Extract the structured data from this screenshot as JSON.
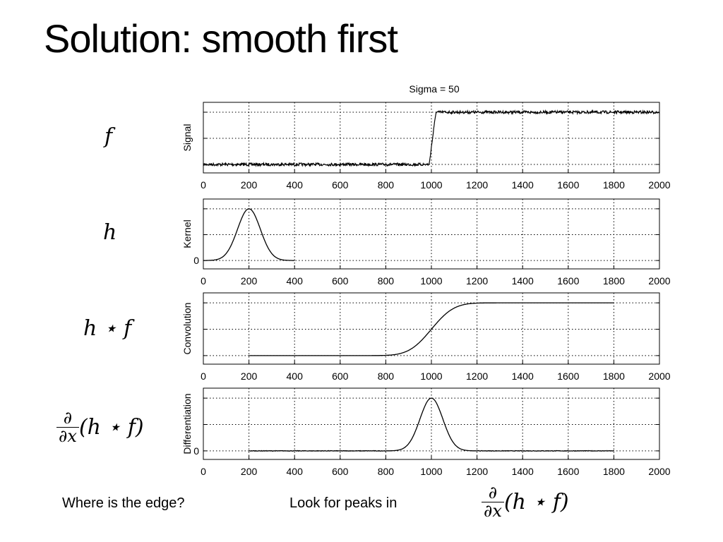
{
  "slide": {
    "title": "Solution:  smooth first",
    "note_left": "Where is the edge?",
    "note_right": "Look for peaks in",
    "math_labels": [
      "f",
      "h",
      "h ⋆ f"
    ],
    "deriv_numerator": "∂",
    "deriv_denominator": "∂x",
    "deriv_body": "(h ⋆ f)"
  },
  "chart_data": [
    {
      "type": "line",
      "title": "Sigma = 50",
      "ylabel": "Signal",
      "xlim": [
        0,
        2000
      ],
      "xticks": [
        0,
        200,
        400,
        600,
        800,
        1000,
        1200,
        1400,
        1600,
        1800,
        2000
      ],
      "grid": "dotted",
      "yticks": [],
      "series": [
        {
          "x": [
            0,
            990,
            1020,
            2000
          ],
          "y": [
            0,
            0,
            1,
            1
          ],
          "noise": true
        }
      ]
    },
    {
      "type": "line",
      "title": "",
      "ylabel": "Kernel",
      "xlim": [
        0,
        2000
      ],
      "xticks": [
        0,
        200,
        400,
        600,
        800,
        1000,
        1200,
        1400,
        1600,
        1800,
        2000
      ],
      "grid": "dotted",
      "yticks": [
        "0"
      ],
      "series": [
        {
          "gaussian": {
            "center": 200,
            "sigma": 50,
            "from": 0,
            "to": 400
          }
        }
      ]
    },
    {
      "type": "line",
      "title": "",
      "ylabel": "Convolution",
      "xlim": [
        0,
        2000
      ],
      "xticks": [
        0,
        200,
        400,
        600,
        800,
        1000,
        1200,
        1400,
        1600,
        1800,
        2000
      ],
      "grid": "dotted",
      "yticks": [],
      "series": [
        {
          "sigmoid": {
            "center": 1000,
            "sigma": 50,
            "from": 200,
            "to": 1800
          }
        }
      ]
    },
    {
      "type": "line",
      "title": "",
      "ylabel": "Differentiation",
      "xlim": [
        0,
        2000
      ],
      "xticks": [
        0,
        200,
        400,
        600,
        800,
        1000,
        1200,
        1400,
        1600,
        1800,
        2000
      ],
      "grid": "dotted",
      "yticks": [
        "0"
      ],
      "series": [
        {
          "gaussian": {
            "center": 1000,
            "sigma": 50,
            "from": 200,
            "to": 1800
          }
        }
      ]
    }
  ]
}
